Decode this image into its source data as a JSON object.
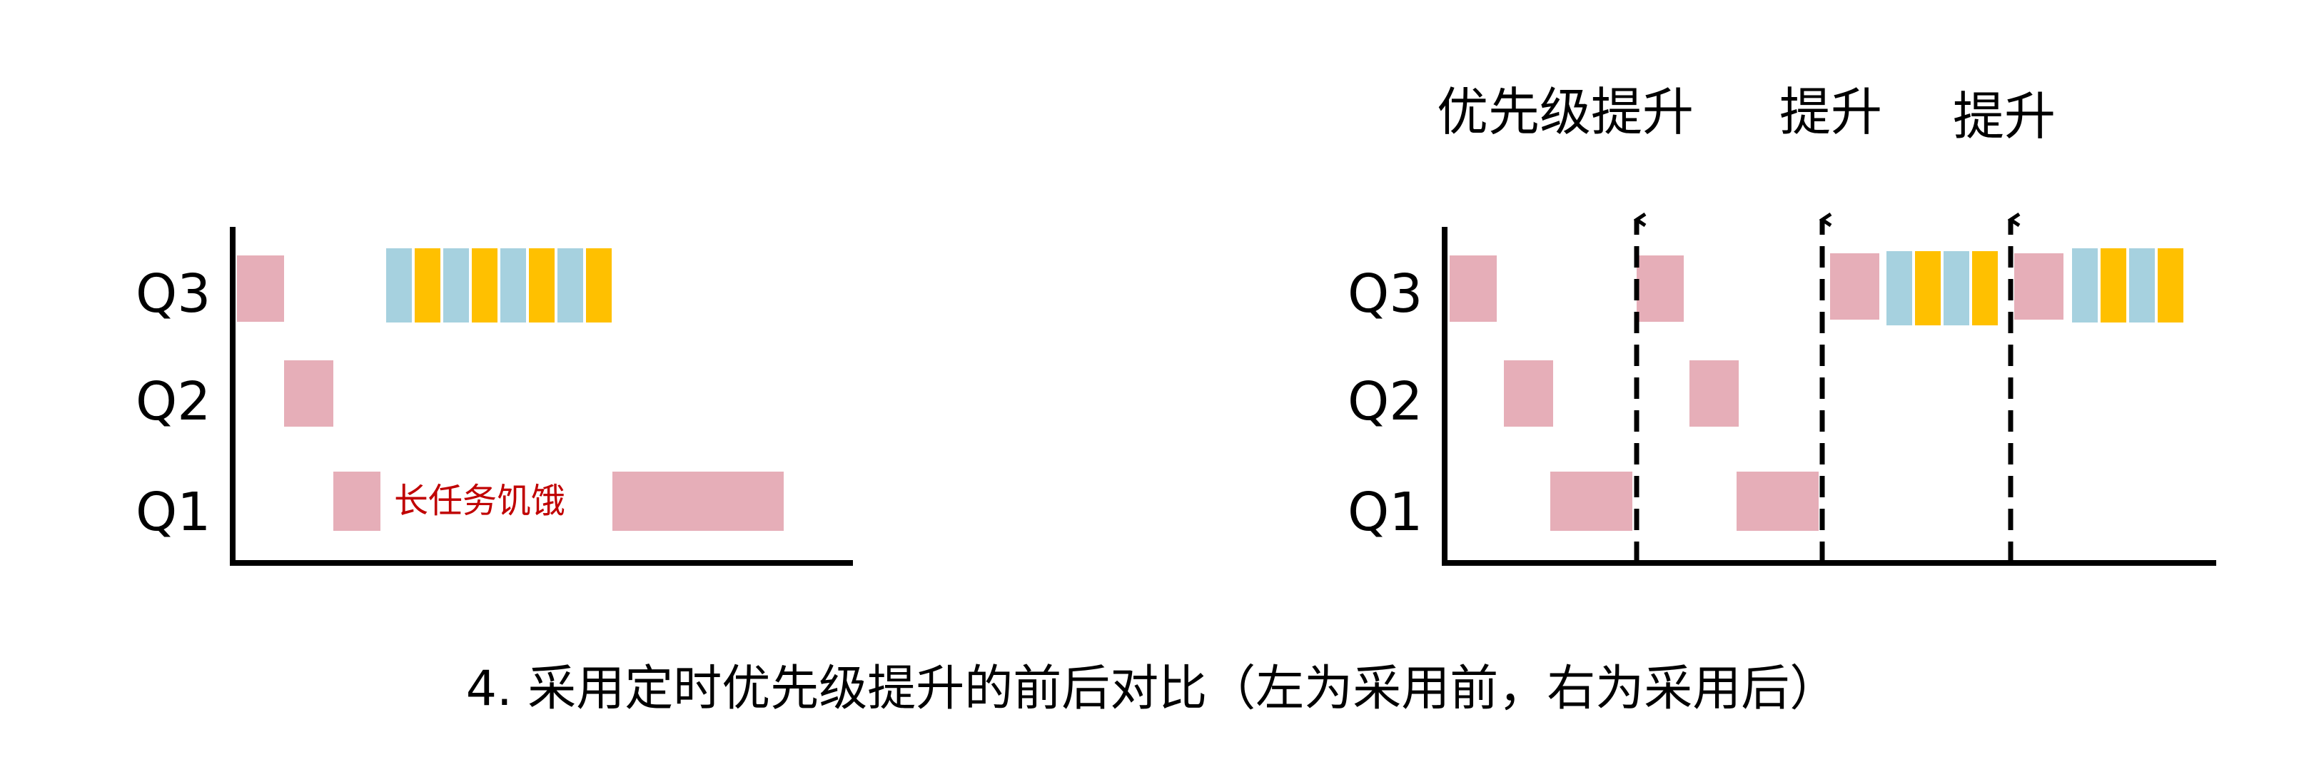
{
  "colors": {
    "pink": "#E6AEB8",
    "blue": "#A6D1DF",
    "yellow": "#FFC000",
    "axis": "#000000",
    "annotation": "#C00000"
  },
  "left_diagram": {
    "lane_labels": [
      "Q3",
      "Q2",
      "Q1"
    ],
    "annotation": "长任务饥饿"
  },
  "right_diagram": {
    "lane_labels": [
      "Q3",
      "Q2",
      "Q1"
    ],
    "boost_labels": [
      "优先级提升",
      "提升",
      "提升"
    ]
  },
  "caption": "4. 采用定时优先级提升的前后对比（左为采用前，右为采用后）"
}
